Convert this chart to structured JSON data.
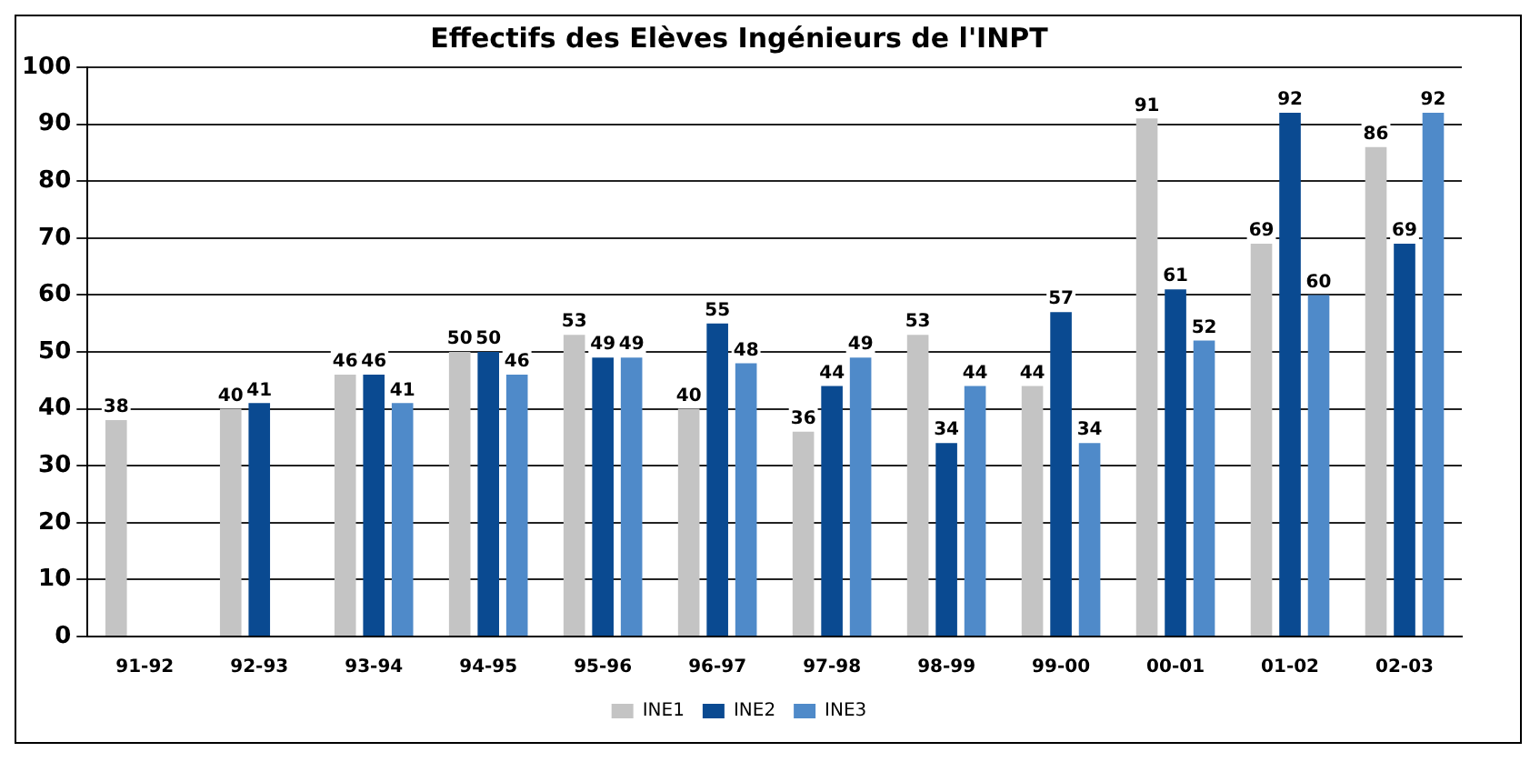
{
  "chart_data": {
    "type": "bar",
    "title": "Effectifs des Elèves Ingénieurs de l'INPT",
    "categories": [
      "91-92",
      "92-93",
      "93-94",
      "94-95",
      "95-96",
      "96-97",
      "97-98",
      "98-99",
      "99-00",
      "00-01",
      "01-02",
      "02-03"
    ],
    "series": [
      {
        "name": "INE1",
        "color": "#c4c4c4",
        "values": [
          38,
          40,
          46,
          50,
          53,
          40,
          36,
          53,
          44,
          91,
          69,
          86
        ]
      },
      {
        "name": "INE2",
        "color": "#0a4a91",
        "values": [
          null,
          41,
          46,
          50,
          49,
          55,
          44,
          34,
          57,
          61,
          92,
          69
        ]
      },
      {
        "name": "INE3",
        "color": "#4f8ac9",
        "values": [
          null,
          null,
          41,
          46,
          49,
          48,
          49,
          44,
          34,
          52,
          60,
          92
        ]
      }
    ],
    "data_labels": true,
    "ylim": [
      0,
      100
    ],
    "yticks": [
      0,
      10,
      20,
      30,
      40,
      50,
      60,
      70,
      80,
      90,
      100
    ],
    "grid": "y",
    "legend": "bottom"
  }
}
